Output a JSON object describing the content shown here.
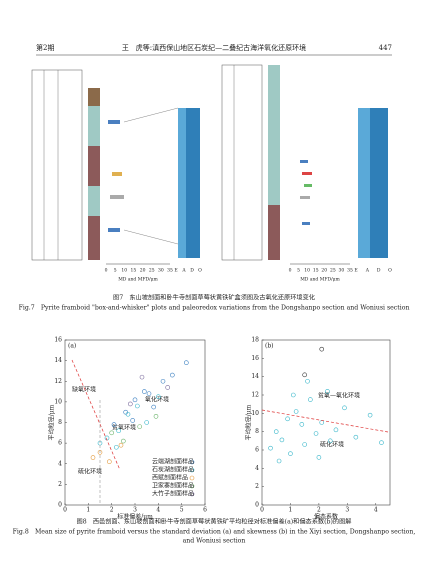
{
  "header": {
    "issue": "第2期",
    "running_title": "王　虎等:滇西保山地区石炭纪—二叠纪古海洋氧化还原环境",
    "page": "447"
  },
  "fig7": {
    "axis_ticks": [
      "0",
      "5",
      "10",
      "15",
      "20",
      "25",
      "30",
      "35"
    ],
    "redox_ticks": [
      "E",
      "A",
      "D",
      "O"
    ],
    "axis_label": "MD and MFD/μm",
    "caption_cn": "图7　东山坡剖面和卧牛寺剖面草莓状黄铁矿盒须图及古氧化还原环境变化",
    "caption_en": "Fig.7　Pyrite framboid \"box-and-whisker\" plots and paleoredox variations from the Dongshanpo section and Woniusi section"
  },
  "fig8": {
    "a": {
      "panel": "(a)",
      "xlabel": "标准偏差/μm",
      "ylabel": "平均粒径/μm",
      "xlim": [
        0,
        6
      ],
      "xticks": [
        0,
        1,
        2,
        3,
        4,
        5,
        6
      ],
      "ylim": [
        0,
        16
      ],
      "yticks": [
        0,
        2,
        4,
        6,
        8,
        10,
        12,
        14,
        16
      ],
      "regions": [
        "缺氧环境",
        "氧化环境",
        "贫氧环境",
        "硫化环境"
      ],
      "series": [
        {
          "name": "云端湖剖面样品",
          "color": "#3a7fc1",
          "x": [
            2.1,
            2.6,
            3.0,
            3.4,
            3.8,
            4.2,
            2.9,
            3.6,
            4.6,
            5.2
          ],
          "y": [
            7.8,
            9.0,
            10.2,
            11.0,
            9.5,
            12.0,
            8.2,
            10.8,
            12.6,
            13.8
          ]
        },
        {
          "name": "石炭湖剖面样品",
          "color": "#34b5c9",
          "x": [
            1.8,
            2.3,
            2.7,
            3.1,
            3.5,
            4.0,
            1.5,
            2.2
          ],
          "y": [
            6.5,
            7.2,
            8.8,
            9.6,
            8.0,
            10.5,
            6.0,
            5.6
          ]
        },
        {
          "name": "西赋剖面样品",
          "color": "#e39a3c",
          "x": [
            1.2,
            1.5,
            1.9,
            2.4
          ],
          "y": [
            4.6,
            5.1,
            4.2,
            5.8
          ]
        },
        {
          "name": "卫家寨剖面样品",
          "color": "#6bb36b",
          "x": [
            2.0,
            2.5,
            3.2,
            3.9
          ],
          "y": [
            7.0,
            6.2,
            7.6,
            8.6
          ]
        },
        {
          "name": "大竹子剖面样品",
          "color": "#7a6a9c",
          "x": [
            3.3,
            4.4,
            2.8
          ],
          "y": [
            12.4,
            11.4,
            9.8
          ]
        }
      ]
    },
    "b": {
      "panel": "(b)",
      "xlabel": "偏态系数",
      "ylabel": "平均粒径/μm",
      "xlim": [
        0,
        4.5
      ],
      "xticks": [
        0,
        1,
        2,
        3,
        4
      ],
      "ylim": [
        0,
        18
      ],
      "yticks": [
        0,
        2,
        4,
        6,
        8,
        10,
        12,
        14,
        16,
        18
      ],
      "regions": [
        "贫氧—氧化环境",
        "硫化环境"
      ],
      "series": [
        {
          "name": "points",
          "color": "#34b5c9",
          "x": [
            0.3,
            0.5,
            0.7,
            0.9,
            1.0,
            1.2,
            1.4,
            1.5,
            1.7,
            1.9,
            2.1,
            2.3,
            2.6,
            2.9,
            3.3,
            3.8,
            4.2,
            0.6,
            1.1,
            1.6,
            2.0,
            2.4
          ],
          "y": [
            6.2,
            8.0,
            7.1,
            9.4,
            5.6,
            10.2,
            8.8,
            6.6,
            11.5,
            7.8,
            9.0,
            12.4,
            8.2,
            10.6,
            7.4,
            9.8,
            6.8,
            4.8,
            12.0,
            13.5,
            5.2,
            7.0
          ]
        },
        {
          "name": "outliers",
          "color": "#333333",
          "x": [
            2.1,
            1.5
          ],
          "y": [
            17.0,
            14.2
          ]
        }
      ]
    },
    "caption_cn": "图8　西邑剖面、东山坡剖面和卧牛寺剖面草莓状黄铁矿平均粒径对标准偏差(a)和偏态系数(b)的图解",
    "caption_en": [
      "Fig.8　Mean size of pyrite framboid versus the standard deviation (a) and skewness (b) in the Xiyi section, Dongshanpo section,",
      "and Woniusi section"
    ]
  }
}
